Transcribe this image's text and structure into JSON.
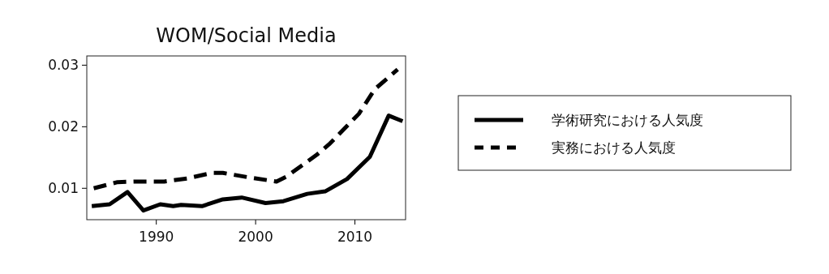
{
  "chart_data": {
    "type": "line",
    "title": "WOM/Social Media",
    "xlim": [
      1983,
      2015.1
    ],
    "ylim": [
      0.0049,
      0.0315
    ],
    "xticks": [
      1990,
      2000,
      2010
    ],
    "yticks": [
      0.01,
      0.02,
      0.03
    ],
    "grid": false,
    "legend": "right",
    "series": [
      {
        "name": "学術研究における人気度",
        "color": "#000000",
        "line_style": "solid",
        "x": [
          1983.5,
          1985.3,
          1987.1,
          1988.7,
          1990.4,
          1991.7,
          1992.5,
          1994.6,
          1996.7,
          1998.6,
          2001.0,
          2002.8,
          2005.2,
          2007.0,
          2009.2,
          2011.5,
          2013.4,
          2014.8
        ],
        "values": [
          0.0071,
          0.0074,
          0.0094,
          0.0064,
          0.0074,
          0.0071,
          0.0073,
          0.0071,
          0.0082,
          0.0085,
          0.0076,
          0.0079,
          0.0091,
          0.0095,
          0.0115,
          0.0151,
          0.0218,
          0.0209
        ]
      },
      {
        "name": "実務における人気度",
        "color": "#000000",
        "line_style": "dashed",
        "x": [
          1983.7,
          1986.1,
          1988.0,
          1990.8,
          1993.1,
          1995.6,
          1996.7,
          1999.2,
          2002.1,
          2003.1,
          2006.2,
          2007.5,
          2010.4,
          2012.0,
          2014.3
        ],
        "values": [
          0.01,
          0.011,
          0.0111,
          0.0111,
          0.0116,
          0.0125,
          0.0125,
          0.0118,
          0.0111,
          0.0119,
          0.0155,
          0.0173,
          0.0221,
          0.0261,
          0.0293
        ]
      }
    ]
  }
}
